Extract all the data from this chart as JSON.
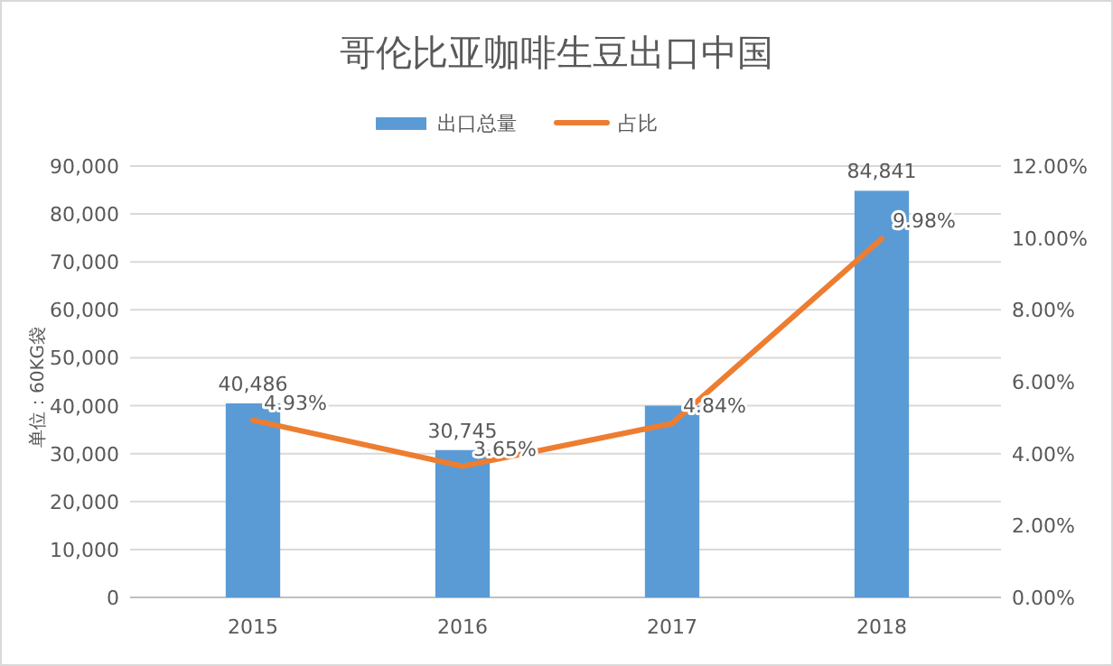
{
  "chart_data": {
    "type": "bar",
    "title": "哥伦比亚咖啡生豆出口中国",
    "ylabel": "单位：60KG袋",
    "categories": [
      "2015",
      "2016",
      "2017",
      "2018"
    ],
    "series": [
      {
        "name": "出口总量",
        "color": "#5b9bd5",
        "values": [
          40486,
          30745,
          40000,
          84841
        ],
        "value_labels": [
          "40,486",
          "30,745",
          null,
          "84,841"
        ]
      },
      {
        "name": "占比",
        "type": "line",
        "axis": "y2",
        "color": "#ed7d31",
        "values": [
          4.93,
          3.65,
          4.84,
          9.98
        ],
        "value_labels": [
          "4.93%",
          "3.65%",
          "4.84%",
          "9.98%"
        ]
      }
    ],
    "ylim": [
      0,
      90000
    ],
    "yticks": [
      {
        "value": 0,
        "label": "0"
      },
      {
        "value": 10000,
        "label": "10,000"
      },
      {
        "value": 20000,
        "label": "20,000"
      },
      {
        "value": 30000,
        "label": "30,000"
      },
      {
        "value": 40000,
        "label": "40,000"
      },
      {
        "value": 50000,
        "label": "50,000"
      },
      {
        "value": 60000,
        "label": "60,000"
      },
      {
        "value": 70000,
        "label": "70,000"
      },
      {
        "value": 80000,
        "label": "80,000"
      },
      {
        "value": 90000,
        "label": "90,000"
      }
    ],
    "y2lim": [
      0,
      12
    ],
    "y2ticks": [
      {
        "value": 0,
        "label": "0.00%"
      },
      {
        "value": 2,
        "label": "2.00%"
      },
      {
        "value": 4,
        "label": "4.00%"
      },
      {
        "value": 6,
        "label": "6.00%"
      },
      {
        "value": 8,
        "label": "8.00%"
      },
      {
        "value": 10,
        "label": "10.00%"
      },
      {
        "value": 12,
        "label": "12.00%"
      }
    ],
    "grid": "y",
    "legend": "top",
    "marker": "none",
    "line_style": "solid"
  }
}
